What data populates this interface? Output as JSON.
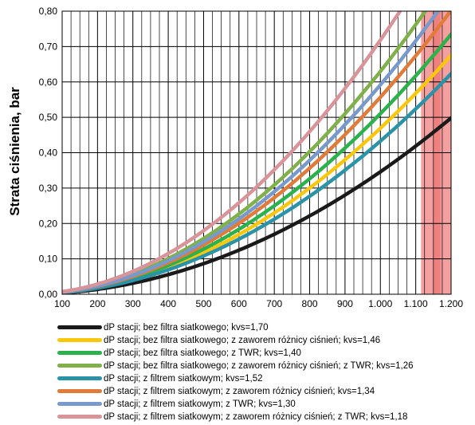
{
  "chart_data": {
    "type": "line",
    "title": "",
    "xlabel": "",
    "ylabel": "Strata ciśnienia, bar",
    "xlim": [
      100,
      1200
    ],
    "ylim": [
      0,
      0.8
    ],
    "x_ticks": [
      "100",
      "200",
      "300",
      "400",
      "500",
      "600",
      "700",
      "800",
      "900",
      "1.000",
      "1.100",
      "1.200"
    ],
    "y_ticks": [
      "0,00",
      "0,10",
      "0,20",
      "0,30",
      "0,40",
      "0,50",
      "0,60",
      "0,70",
      "0,80"
    ],
    "grid": true,
    "legend_position": "bottom",
    "highlight_band": {
      "x_from": 1115,
      "x_to": 1200,
      "color": "#f4a0a0"
    },
    "highlight_band_inner": {
      "x_from": 1150,
      "x_to": 1170,
      "color": "#ee8080"
    },
    "formula": "dP = (Q / 1000 / kvs)^2",
    "series": [
      {
        "name": "dP stacji; bez filtra siatkowego; kvs=1,70",
        "kvs": 1.7,
        "color": "#1a1a1a"
      },
      {
        "name": "dP stacji; bez filtra siatkowego; z zaworem różnicy ciśnień; kvs=1,46",
        "kvs": 1.46,
        "color": "#f9c80e"
      },
      {
        "name": "dP stacji; bez filtra siatkowego; z TWR; kvs=1,40",
        "kvs": 1.4,
        "color": "#2bb24c"
      },
      {
        "name": "dP stacji; bez filtra siatkowego; z zaworem różnicy ciśnień; z TWR; kvs=1,26",
        "kvs": 1.26,
        "color": "#7fb04a"
      },
      {
        "name": "dP stacji; z filtrem siatkowym; kvs=1,52",
        "kvs": 1.52,
        "color": "#2a93a8"
      },
      {
        "name": "dP stacji; z filtrem siatkowym; z zaworem różnicy ciśnień; kvs=1,34",
        "kvs": 1.34,
        "color": "#e07b39"
      },
      {
        "name": "dP stacji; z filtrem siatkowym; z TWR; kvs=1,30",
        "kvs": 1.3,
        "color": "#7799cc"
      },
      {
        "name": "dP stacji; z filtrem siatkowym; z zaworem różnicy ciśnień; z TWR; kvs=1,18",
        "kvs": 1.18,
        "color": "#d9949a"
      }
    ]
  }
}
